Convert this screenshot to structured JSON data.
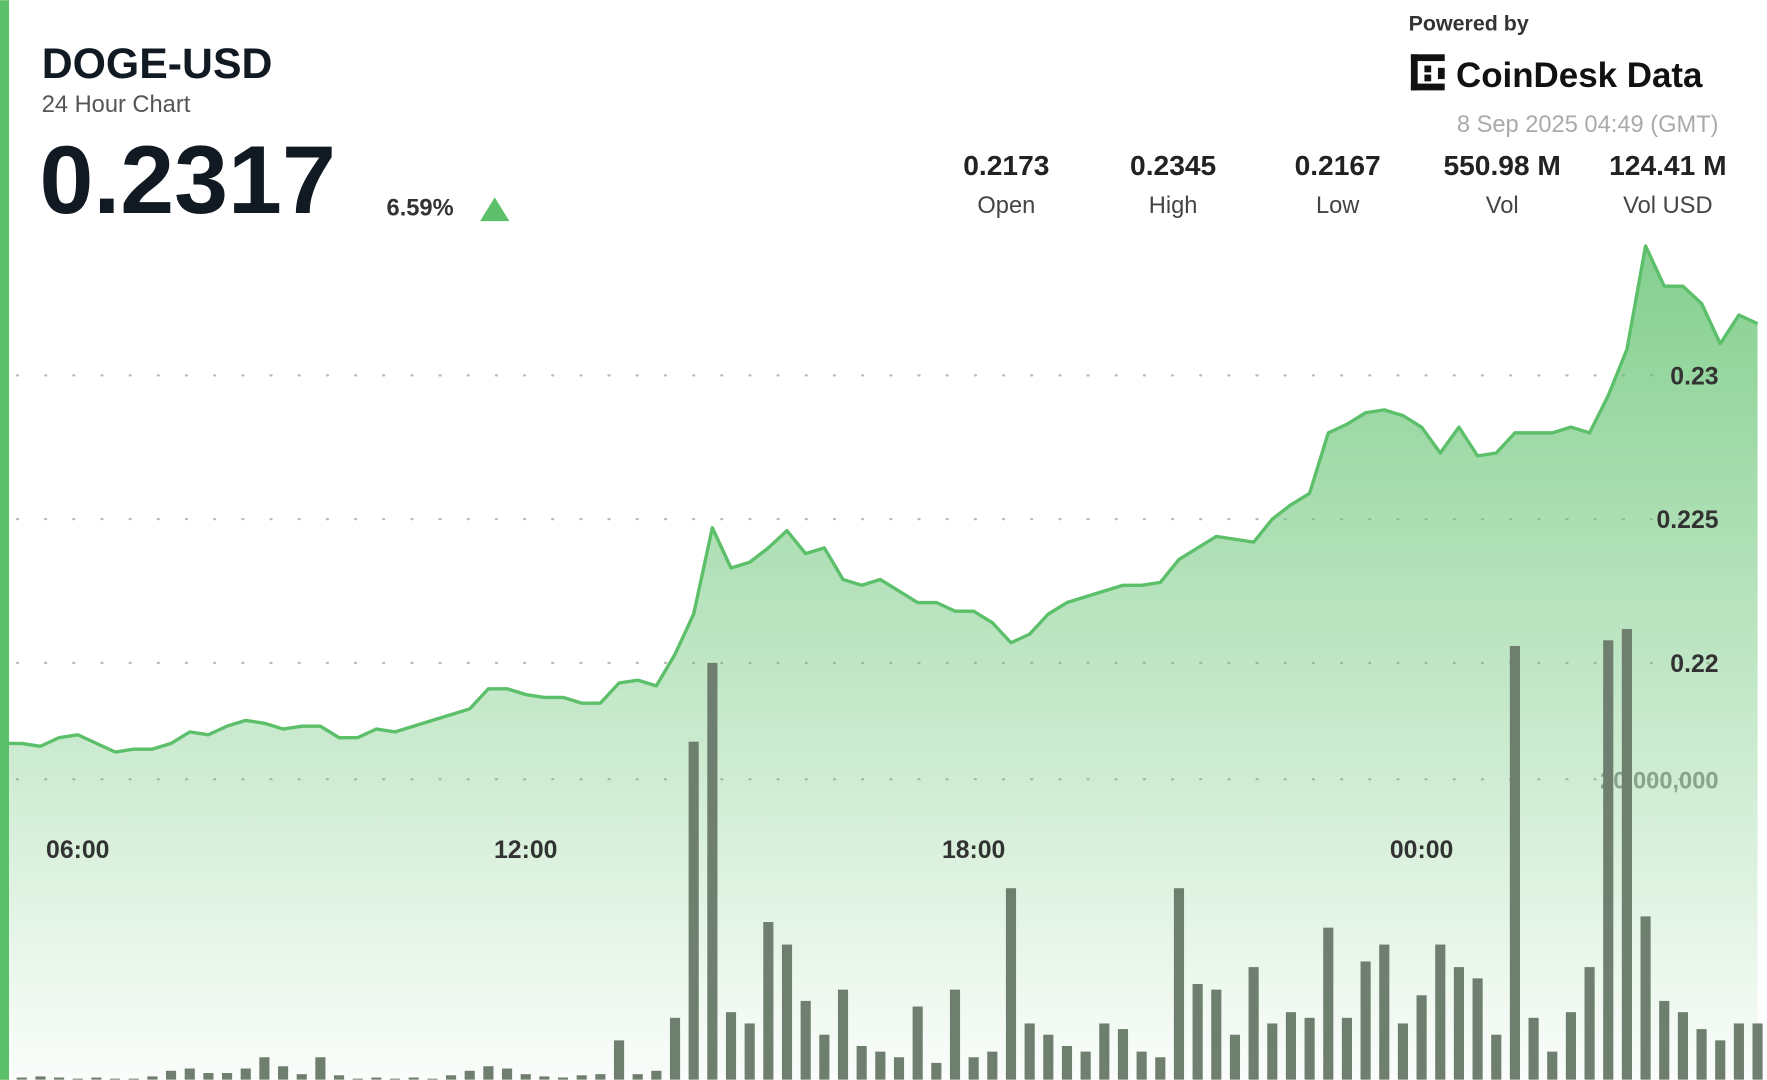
{
  "chart_data": {
    "type": "line",
    "title": "DOGE-USD",
    "subtitle": "24 Hour Chart",
    "categories": [
      null,
      null,
      null,
      null,
      "06:00",
      null,
      null,
      null,
      null,
      null,
      null,
      null,
      null,
      null,
      null,
      null,
      null,
      null,
      null,
      null,
      null,
      null,
      null,
      null,
      null,
      null,
      null,
      null,
      "12:00",
      null,
      null,
      null,
      null,
      null,
      null,
      null,
      null,
      null,
      null,
      null,
      null,
      null,
      null,
      null,
      null,
      null,
      null,
      null,
      null,
      null,
      null,
      null,
      "18:00",
      null,
      null,
      null,
      null,
      null,
      null,
      null,
      null,
      null,
      null,
      null,
      null,
      null,
      null,
      null,
      null,
      null,
      null,
      null,
      null,
      null,
      null,
      null,
      "00:00",
      null,
      null,
      null,
      null,
      null,
      null,
      null,
      null,
      null,
      null,
      null,
      null,
      null,
      null,
      null,
      null,
      null,
      null
    ],
    "series": [
      {
        "color": "#5cbf6a",
        "values": [
          0.2172,
          0.2172,
          0.2171,
          0.2174,
          0.2175,
          0.2172,
          0.2169,
          0.217,
          0.217,
          0.2172,
          0.2176,
          0.2175,
          0.2178,
          0.218,
          0.2179,
          0.2177,
          0.2178,
          0.2178,
          0.2174,
          0.2174,
          0.2177,
          0.2176,
          0.2178,
          0.218,
          0.2182,
          0.2184,
          0.2191,
          0.2191,
          0.2189,
          0.2188,
          0.2188,
          0.2186,
          0.2186,
          0.2193,
          0.2194,
          0.2192,
          0.2203,
          0.2217,
          0.2247,
          0.2233,
          0.2235,
          0.224,
          0.2246,
          0.2238,
          0.224,
          0.2229,
          0.2227,
          0.2229,
          0.2225,
          0.2221,
          0.2221,
          0.2218,
          0.2218,
          0.2214,
          0.2207,
          0.221,
          0.2217,
          0.2221,
          0.2223,
          0.2225,
          0.2227,
          0.2227,
          0.2228,
          0.2236,
          0.224,
          0.2244,
          0.2243,
          0.2242,
          0.225,
          0.2255,
          0.2259,
          0.228,
          0.2283,
          0.2287,
          0.2288,
          0.2286,
          0.2282,
          0.2273,
          0.2282,
          0.2272,
          0.2273,
          0.228,
          0.228,
          0.228,
          0.2282,
          0.228,
          0.2293,
          0.2309,
          0.2345,
          0.2331,
          0.2331,
          0.2325,
          0.2311,
          0.2321,
          0.2318
        ]
      },
      {
        "type": "bar",
        "axis": "y2",
        "color": "#6f7f6f",
        "values": [
          300000,
          150000,
          225000,
          150000,
          75000,
          150000,
          75000,
          75000,
          225000,
          600000,
          750000,
          450000,
          450000,
          750000,
          1500000,
          900000,
          375000,
          1500000,
          300000,
          75000,
          150000,
          75000,
          150000,
          75000,
          300000,
          600000,
          900000,
          750000,
          375000,
          225000,
          150000,
          300000,
          375000,
          2625000,
          375000,
          600000,
          4125000,
          22500000,
          27750000,
          4500000,
          3750000,
          10500000,
          9000000,
          5250000,
          3000000,
          6000000,
          2250000,
          1875000,
          1500000,
          4875000,
          1125000,
          6000000,
          1500000,
          1875000,
          12750000,
          3750000,
          3000000,
          2250000,
          1875000,
          3750000,
          3375000,
          1875000,
          1500000,
          12750000,
          6375000,
          6000000,
          3000000,
          7500000,
          3750000,
          4500000,
          4125000,
          10125000,
          4125000,
          7875000,
          9000000,
          3750000,
          5625000,
          9000000,
          7500000,
          6750000,
          3000000,
          28875000,
          4125000,
          1875000,
          4500000,
          7500000,
          29250000,
          30000000,
          10875000,
          5250000,
          4500000,
          3375000,
          2625000,
          3750000,
          3750000
        ]
      }
    ],
    "ylim": [
      0.2055,
      0.2347
    ],
    "yticks": [
      0.22,
      0.225,
      0.23
    ],
    "y2lim": [
      0,
      30000000
    ],
    "y2ticks": [
      {
        "value": 20000000,
        "label": "20,000,000"
      }
    ],
    "grid": true
  },
  "header": {
    "price": "0.2317",
    "change": "6.59%",
    "powered_by": "Powered by",
    "brand": "CoinDesk Data",
    "timestamp": "8 Sep 2025 04:49 (GMT)"
  },
  "stats": [
    {
      "value": "0.2173",
      "label": "Open"
    },
    {
      "value": "0.2345",
      "label": "High"
    },
    {
      "value": "0.2167",
      "label": "Low"
    },
    {
      "value": "550.98 M",
      "label": "Vol"
    },
    {
      "value": "124.41 M",
      "label": "Vol USD"
    }
  ]
}
